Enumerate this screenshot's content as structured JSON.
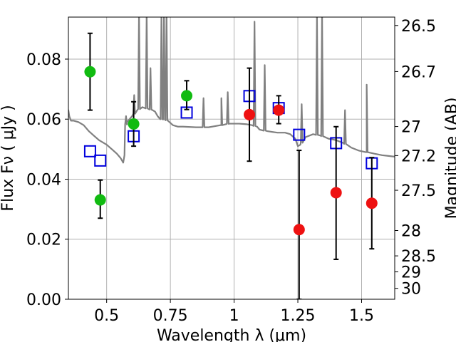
{
  "chart_data": {
    "type": "scatter",
    "title": "",
    "xlabel": "Wavelength  λ (μm)",
    "ylabel": "Flux  Fν  ( μJy )",
    "ylabel_right": "Magnitude (AB)",
    "xlim": [
      0.35,
      1.63
    ],
    "ylim": [
      0.0,
      0.094
    ],
    "grid": true,
    "x_ticks": [
      0.5,
      0.75,
      1.0,
      1.25,
      1.5
    ],
    "x_tick_labels": [
      "0.5",
      "0.75",
      "1",
      "1.25",
      "1.5"
    ],
    "y_ticks": [
      0.0,
      0.02,
      0.04,
      0.06,
      0.08
    ],
    "y_tick_labels": [
      "0.00",
      "0.02",
      "0.04",
      "0.06",
      "0.08"
    ],
    "right_ticks": [
      {
        "label": "26.5",
        "mag": 26.5
      },
      {
        "label": "26.7",
        "mag": 26.7
      },
      {
        "label": "27",
        "mag": 27.0
      },
      {
        "label": "27.2",
        "mag": 27.2
      },
      {
        "label": "27.5",
        "mag": 27.5
      },
      {
        "label": "28",
        "mag": 28.0
      },
      {
        "label": "28.5",
        "mag": 28.5
      },
      {
        "label": "29",
        "mag": 29.0
      },
      {
        "label": "30",
        "mag": 30.0
      }
    ],
    "colors": {
      "model": "#808080",
      "green": "#11bb11",
      "red": "#ee1111",
      "blue": "#0000dd",
      "errorbar": "#000000",
      "grid": "#b0b0b0"
    },
    "series": [
      {
        "name": "green-observed",
        "marker": "circle",
        "color": "green",
        "points": [
          {
            "x": 0.435,
            "y": 0.0758,
            "err_lo": 0.0128,
            "err_hi": 0.0128
          },
          {
            "x": 0.475,
            "y": 0.0331,
            "err_lo": 0.0061,
            "err_hi": 0.0066
          },
          {
            "x": 0.606,
            "y": 0.0584,
            "err_lo": 0.0074,
            "err_hi": 0.0074
          },
          {
            "x": 0.814,
            "y": 0.0678,
            "err_lo": 0.0046,
            "err_hi": 0.005
          }
        ]
      },
      {
        "name": "red-observed",
        "marker": "circle",
        "color": "red",
        "points": [
          {
            "x": 1.06,
            "y": 0.0615,
            "err_lo": 0.0155,
            "err_hi": 0.0155
          },
          {
            "x": 1.175,
            "y": 0.063,
            "err_lo": 0.0045,
            "err_hi": 0.0048
          },
          {
            "x": 1.255,
            "y": 0.0232,
            "err_lo": 0.0232,
            "err_hi": 0.0264
          },
          {
            "x": 1.4,
            "y": 0.0355,
            "err_lo": 0.0222,
            "err_hi": 0.022
          },
          {
            "x": 1.54,
            "y": 0.032,
            "err_lo": 0.0152,
            "err_hi": 0.0152
          }
        ]
      },
      {
        "name": "model-photometry",
        "marker": "square",
        "color": "blue",
        "points": [
          {
            "x": 0.435,
            "y": 0.0493
          },
          {
            "x": 0.475,
            "y": 0.0462
          },
          {
            "x": 0.606,
            "y": 0.0543
          },
          {
            "x": 0.814,
            "y": 0.0622
          },
          {
            "x": 1.06,
            "y": 0.0677
          },
          {
            "x": 1.175,
            "y": 0.0637
          },
          {
            "x": 1.255,
            "y": 0.0548
          },
          {
            "x": 1.4,
            "y": 0.052
          },
          {
            "x": 1.54,
            "y": 0.0453
          }
        ]
      },
      {
        "name": "model-spectrum",
        "marker": "line",
        "color": "model",
        "points": [
          [
            0.35,
            0.061
          ],
          [
            0.36,
            0.0595
          ],
          [
            0.37,
            0.0595
          ],
          [
            0.39,
            0.059
          ],
          [
            0.41,
            0.058
          ],
          [
            0.43,
            0.056
          ],
          [
            0.45,
            0.0545
          ],
          [
            0.47,
            0.053
          ],
          [
            0.49,
            0.052
          ],
          [
            0.5,
            0.0515
          ],
          [
            0.52,
            0.05
          ],
          [
            0.54,
            0.0485
          ],
          [
            0.555,
            0.047
          ],
          [
            0.565,
            0.0455
          ],
          [
            0.57,
            0.048
          ],
          [
            0.575,
            0.058
          ],
          [
            0.58,
            0.059
          ],
          [
            0.6,
            0.061
          ],
          [
            0.62,
            0.063
          ],
          [
            0.64,
            0.064
          ],
          [
            0.66,
            0.0635
          ],
          [
            0.68,
            0.063
          ],
          [
            0.69,
            0.0625
          ],
          [
            0.7,
            0.061
          ],
          [
            0.71,
            0.06
          ],
          [
            0.72,
            0.06
          ],
          [
            0.74,
            0.0595
          ],
          [
            0.76,
            0.058
          ],
          [
            0.78,
            0.0575
          ],
          [
            0.8,
            0.0575
          ],
          [
            0.85,
            0.0573
          ],
          [
            0.9,
            0.0573
          ],
          [
            0.95,
            0.058
          ],
          [
            0.98,
            0.0585
          ],
          [
            1.0,
            0.0585
          ],
          [
            1.02,
            0.0585
          ],
          [
            1.05,
            0.0583
          ],
          [
            1.07,
            0.058
          ],
          [
            1.09,
            0.0575
          ],
          [
            1.1,
            0.0565
          ],
          [
            1.13,
            0.056
          ],
          [
            1.17,
            0.0555
          ],
          [
            1.2,
            0.0555
          ],
          [
            1.22,
            0.055
          ],
          [
            1.24,
            0.0535
          ],
          [
            1.25,
            0.051
          ],
          [
            1.26,
            0.0515
          ],
          [
            1.28,
            0.054
          ],
          [
            1.31,
            0.055
          ],
          [
            1.34,
            0.0545
          ],
          [
            1.37,
            0.0535
          ],
          [
            1.4,
            0.053
          ],
          [
            1.43,
            0.052
          ],
          [
            1.46,
            0.0505
          ],
          [
            1.49,
            0.0495
          ],
          [
            1.52,
            0.049
          ],
          [
            1.55,
            0.0485
          ],
          [
            1.58,
            0.048
          ],
          [
            1.6,
            0.0478
          ],
          [
            1.63,
            0.0475
          ]
        ],
        "emission_lines": [
          {
            "x": 0.35,
            "peak": 0.063
          },
          {
            "x": 0.576,
            "peak": 0.061
          },
          {
            "x": 0.608,
            "peak": 0.068
          },
          {
            "x": 0.627,
            "peak": 0.0955
          },
          {
            "x": 0.657,
            "peak": 0.0955
          },
          {
            "x": 0.672,
            "peak": 0.077
          },
          {
            "x": 0.715,
            "peak": 0.0955
          },
          {
            "x": 0.725,
            "peak": 0.0955
          },
          {
            "x": 0.735,
            "peak": 0.0955
          },
          {
            "x": 0.88,
            "peak": 0.067
          },
          {
            "x": 0.95,
            "peak": 0.067
          },
          {
            "x": 0.975,
            "peak": 0.069
          },
          {
            "x": 1.08,
            "peak": 0.0925
          },
          {
            "x": 1.12,
            "peak": 0.078
          },
          {
            "x": 1.265,
            "peak": 0.065
          },
          {
            "x": 1.325,
            "peak": 0.0955
          },
          {
            "x": 1.345,
            "peak": 0.0955
          },
          {
            "x": 1.435,
            "peak": 0.063
          },
          {
            "x": 1.52,
            "peak": 0.0715
          }
        ]
      }
    ]
  }
}
